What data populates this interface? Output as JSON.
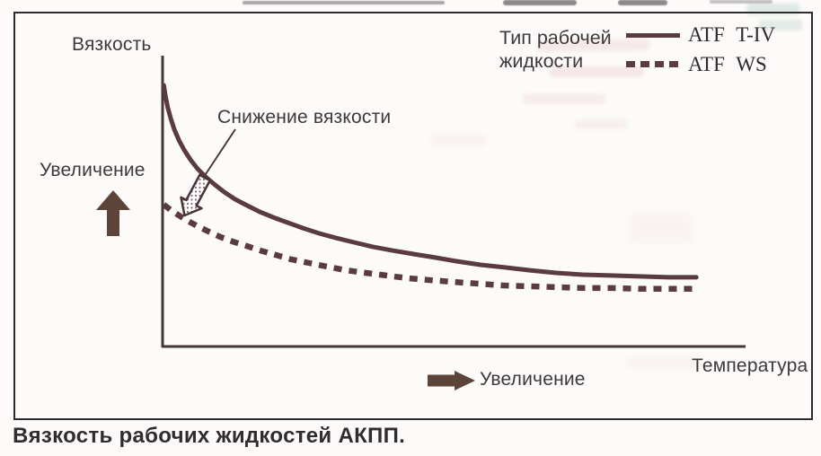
{
  "figure": {
    "caption": "Вязкость рабочих жидкостей АКПП."
  },
  "labels": {
    "y_axis": "Вязкость",
    "x_axis": "Температура",
    "y_increase": "Увеличение",
    "x_increase": "Увеличение",
    "annotation": "Снижение вязкости"
  },
  "legend": {
    "title": "Тип рабочей жидкости",
    "position": "top-right"
  },
  "colors": {
    "curve": "#5a3c40",
    "axis": "#453639",
    "arrow": "#5d4439",
    "text": "#3f383a",
    "caption": "#322c2e",
    "frame": "#2d2a2b"
  },
  "chart_data": {
    "type": "line",
    "title": "Вязкость рабочих жидкостей АКПП.",
    "xlabel": "Температура",
    "ylabel": "Вязкость",
    "axes": "qualitative, no ticks or numeric scale; arrows labelled «Увеличение» show direction of increase on both axes",
    "grid": false,
    "legend_title": "Тип рабочей жидкости",
    "legend_position": "top-right",
    "annotation": {
      "text": "Снижение вязкости",
      "meaning": "hollow arrow between curves pointing down-left toward ATF WS curve near the viscosity axis"
    },
    "x_range_norm": [
      0,
      1
    ],
    "y_range_norm": [
      0,
      1
    ],
    "series": [
      {
        "name": "ATF T-IV",
        "style": "solid",
        "points": [
          [
            0.002,
            0.898
          ],
          [
            0.005,
            0.861
          ],
          [
            0.009,
            0.821
          ],
          [
            0.014,
            0.784
          ],
          [
            0.02,
            0.747
          ],
          [
            0.028,
            0.71
          ],
          [
            0.037,
            0.676
          ],
          [
            0.048,
            0.642
          ],
          [
            0.06,
            0.611
          ],
          [
            0.074,
            0.583
          ],
          [
            0.09,
            0.556
          ],
          [
            0.106,
            0.531
          ],
          [
            0.125,
            0.506
          ],
          [
            0.145,
            0.485
          ],
          [
            0.167,
            0.463
          ],
          [
            0.19,
            0.444
          ],
          [
            0.215,
            0.426
          ],
          [
            0.241,
            0.407
          ],
          [
            0.269,
            0.389
          ],
          [
            0.298,
            0.373
          ],
          [
            0.329,
            0.358
          ],
          [
            0.361,
            0.343
          ],
          [
            0.395,
            0.33
          ],
          [
            0.431,
            0.318
          ],
          [
            0.468,
            0.306
          ],
          [
            0.506,
            0.293
          ],
          [
            0.546,
            0.281
          ],
          [
            0.588,
            0.272
          ],
          [
            0.631,
            0.262
          ],
          [
            0.676,
            0.253
          ],
          [
            0.722,
            0.247
          ],
          [
            0.77,
            0.244
          ],
          [
            0.819,
            0.241
          ],
          [
            0.869,
            0.238
          ],
          [
            0.917,
            0.238
          ]
        ]
      },
      {
        "name": "ATF WS",
        "style": "dashed",
        "points": [
          [
            0.002,
            0.488
          ],
          [
            0.014,
            0.469
          ],
          [
            0.028,
            0.451
          ],
          [
            0.043,
            0.432
          ],
          [
            0.06,
            0.414
          ],
          [
            0.079,
            0.395
          ],
          [
            0.099,
            0.377
          ],
          [
            0.12,
            0.361
          ],
          [
            0.144,
            0.346
          ],
          [
            0.168,
            0.33
          ],
          [
            0.194,
            0.315
          ],
          [
            0.222,
            0.299
          ],
          [
            0.252,
            0.287
          ],
          [
            0.282,
            0.275
          ],
          [
            0.315,
            0.262
          ],
          [
            0.349,
            0.253
          ],
          [
            0.384,
            0.244
          ],
          [
            0.421,
            0.235
          ],
          [
            0.46,
            0.228
          ],
          [
            0.5,
            0.222
          ],
          [
            0.542,
            0.216
          ],
          [
            0.585,
            0.21
          ],
          [
            0.63,
            0.207
          ],
          [
            0.676,
            0.204
          ],
          [
            0.724,
            0.201
          ],
          [
            0.773,
            0.201
          ],
          [
            0.823,
            0.198
          ],
          [
            0.872,
            0.198
          ],
          [
            0.917,
            0.198
          ]
        ]
      }
    ]
  }
}
